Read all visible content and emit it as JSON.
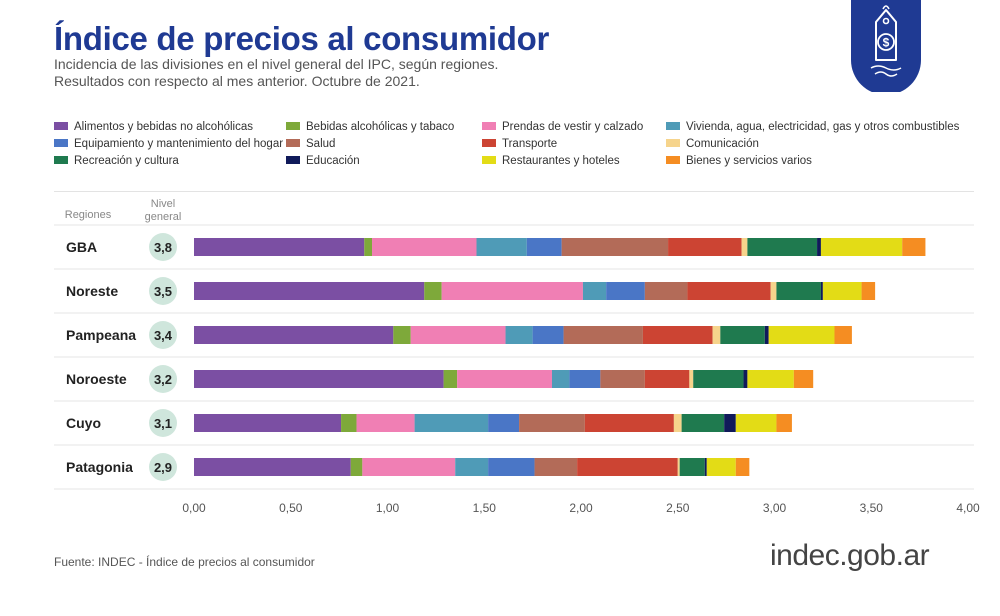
{
  "header": {
    "title": "Índice de precios al consumidor",
    "subtitle_line1": "Incidencia de las divisiones en el nivel general del IPC, según regiones.",
    "subtitle_line2": "Resultados con respecto al mes anterior. Octubre de 2021."
  },
  "badge": {
    "icon": "price-tag-dollar-icon",
    "color": "#1f3a93"
  },
  "table_headers": {
    "regions": "Regiones",
    "nivel": "Nivel general"
  },
  "footer": {
    "source": "Fuente: INDEC - Índice de precios al consumidor",
    "logo": "indec.gob.ar"
  },
  "chart_data": {
    "type": "bar",
    "orientation": "horizontal",
    "stacked": true,
    "xlim": [
      0,
      4
    ],
    "xticks": [
      "0,00",
      "0,50",
      "1,00",
      "1,50",
      "2,00",
      "2,50",
      "3,00",
      "3,50",
      "4,00"
    ],
    "categories": [
      "GBA",
      "Noreste",
      "Pampeana",
      "Noroeste",
      "Cuyo",
      "Patagonia"
    ],
    "nivel_general": [
      "3,8",
      "3,5",
      "3,4",
      "3,2",
      "3,1",
      "2,9"
    ],
    "series": [
      {
        "name": "Alimentos y bebidas no alcohólicas",
        "color": "#7b4fa3",
        "values": [
          0.88,
          1.19,
          1.03,
          1.29,
          0.76,
          0.81
        ]
      },
      {
        "name": "Bebidas alcohólicas y tabaco",
        "color": "#7ea93a",
        "values": [
          0.04,
          0.09,
          0.09,
          0.07,
          0.08,
          0.06
        ]
      },
      {
        "name": "Prendas de vestir y calzado",
        "color": "#f07fb4",
        "values": [
          0.54,
          0.73,
          0.49,
          0.49,
          0.3,
          0.48
        ]
      },
      {
        "name": "Vivienda, agua, electricidad, gas y otros combustibles",
        "color": "#4f9bb7",
        "values": [
          0.26,
          0.12,
          0.14,
          0.09,
          0.38,
          0.17
        ]
      },
      {
        "name": "Equipamiento y mantenimiento del hogar",
        "color": "#4a76c6",
        "values": [
          0.18,
          0.2,
          0.16,
          0.16,
          0.16,
          0.24
        ]
      },
      {
        "name": "Salud",
        "color": "#b36b58",
        "values": [
          0.55,
          0.22,
          0.41,
          0.23,
          0.34,
          0.22
        ]
      },
      {
        "name": "Transporte",
        "color": "#cc4433",
        "values": [
          0.38,
          0.43,
          0.36,
          0.23,
          0.46,
          0.52
        ]
      },
      {
        "name": "Comunicación",
        "color": "#f6d48c",
        "values": [
          0.03,
          0.03,
          0.04,
          0.02,
          0.04,
          0.01
        ]
      },
      {
        "name": "Recreación y cultura",
        "color": "#1f7a4f",
        "values": [
          0.36,
          0.23,
          0.23,
          0.26,
          0.22,
          0.13
        ]
      },
      {
        "name": "Educación",
        "color": "#101a5a",
        "values": [
          0.02,
          0.01,
          0.02,
          0.02,
          0.06,
          0.01
        ]
      },
      {
        "name": "Restaurantes y hoteles",
        "color": "#e3dc16",
        "values": [
          0.42,
          0.2,
          0.34,
          0.24,
          0.21,
          0.15
        ]
      },
      {
        "name": "Bienes y servicios varios",
        "color": "#f58d22",
        "values": [
          0.12,
          0.07,
          0.09,
          0.1,
          0.08,
          0.07
        ]
      }
    ]
  }
}
